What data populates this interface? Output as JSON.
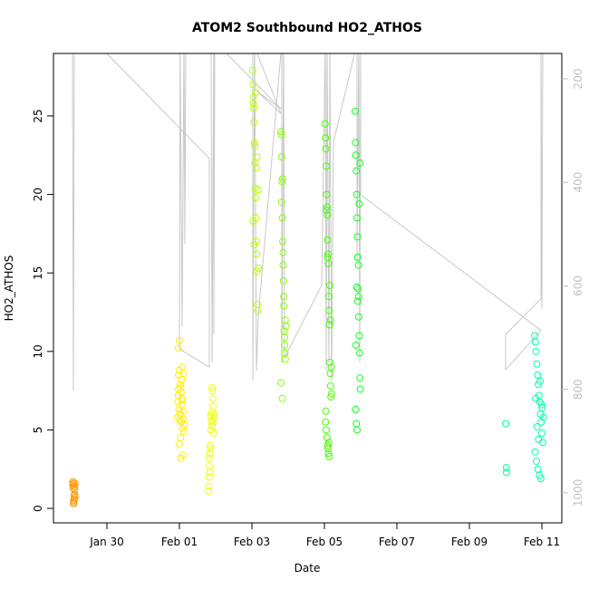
{
  "chart_data": {
    "type": "scatter",
    "title": "ATOM2 Southbound HO2_ATHOS",
    "x_label": "Date",
    "y_label": "HO2_ATHOS",
    "xlim": [
      28.525,
      42.55
    ],
    "ylim": [
      -0.92,
      28.98
    ],
    "y2lim": [
      1058,
      151
    ],
    "xticks": [
      {
        "value": 30,
        "label": "Jan 30"
      },
      {
        "value": 32,
        "label": "Feb 01"
      },
      {
        "value": 34,
        "label": "Feb 03"
      },
      {
        "value": 36,
        "label": "Feb 05"
      },
      {
        "value": 38,
        "label": "Feb 07"
      },
      {
        "value": 40,
        "label": "Feb 09"
      },
      {
        "value": 42,
        "label": "Feb 11"
      }
    ],
    "yticks": [
      0,
      5,
      10,
      15,
      20,
      25
    ],
    "y2ticks": [
      200,
      400,
      600,
      800,
      1000
    ],
    "series": [
      {
        "axis": "y2",
        "color": "#c8c8c8",
        "x": [
          29.05,
          29.075,
          29.1,
          30.0,
          32.825,
          32.825,
          32.0,
          32.02,
          32.075,
          32.125,
          32.15,
          32.175,
          32.875,
          32.9,
          32.95,
          32.95,
          32.975,
          33.3,
          34.8,
          34.125,
          34.8,
          34.025,
          34.025,
          34.075,
          34.125,
          34.175,
          34.825,
          34.825,
          34.875,
          34.9,
          35.925,
          36.025,
          36.05,
          36.075,
          36.125,
          36.15,
          36.2,
          36.25,
          36.9,
          36.9,
          36.95,
          36.975,
          37.0,
          37.0,
          41.975,
          41.0,
          41.0,
          41.975,
          41.975,
          42.0,
          42.025
        ],
        "values": [
          130,
          802,
          130,
          151,
          354,
          757,
          722,
          130,
          678,
          130,
          520,
          130,
          130,
          748,
          130,
          695,
          130,
          151,
          258,
          223,
          267,
          130,
          783,
          130,
          765,
          660,
          130,
          748,
          130,
          739,
          599,
          130,
          765,
          130,
          748,
          130,
          783,
          323,
          130,
          555,
          130,
          748,
          130,
          424,
          686,
          762,
          694,
          625,
          130,
          643,
          130
        ]
      },
      {
        "color": "#ff9900",
        "x": [
          29.06,
          29.06,
          29.07,
          29.07,
          29.08,
          29.08,
          29.09,
          29.09,
          29.1,
          29.1,
          29.11,
          29.11,
          29.12,
          29.12
        ],
        "values": [
          1.7,
          1.5,
          1.6,
          1.3,
          0.3,
          0.5,
          0.8,
          0.4,
          1.4,
          0.6,
          0.9,
          1.2,
          0.7,
          1.6
        ]
      },
      {
        "color": "#ffee00",
        "x": [
          31.95,
          31.96,
          31.97,
          31.98,
          31.98,
          31.99,
          32.0,
          32.0,
          32.01,
          32.02,
          32.02,
          32.03,
          32.04,
          32.05,
          32.05,
          32.06,
          32.07,
          32.08,
          32.08,
          32.09,
          32.1,
          32.1,
          32.11,
          32.12,
          32.13,
          32.14,
          31.97,
          32.0,
          32.03,
          32.06
        ],
        "values": [
          5.8,
          6.8,
          7.2,
          8.5,
          7.6,
          6.3,
          8.8,
          10.7,
          5.6,
          7.9,
          6.0,
          4.5,
          3.2,
          5.5,
          7.4,
          8.2,
          6.6,
          5.1,
          9.0,
          7.0,
          5.7,
          3.4,
          6.2,
          8.6,
          4.9,
          5.3,
          10.2,
          4.1,
          7.7,
          6.9
        ]
      },
      {
        "color": "#eeff00",
        "x": [
          32.8,
          32.81,
          32.82,
          32.83,
          32.84,
          32.85,
          32.86,
          32.87,
          32.88,
          32.89,
          32.9,
          32.91,
          32.92,
          32.93,
          32.94,
          32.95,
          32.96,
          32.82,
          32.86,
          32.9,
          32.84,
          32.92
        ],
        "values": [
          1.1,
          1.4,
          2.0,
          2.7,
          3.5,
          4.0,
          3.8,
          5.0,
          5.6,
          6.1,
          5.3,
          7.5,
          7.0,
          6.5,
          5.8,
          4.8,
          6.0,
          3.2,
          5.9,
          7.7,
          2.3,
          5.5
        ]
      },
      {
        "color": "#bbff00",
        "x": [
          34.02,
          34.03,
          34.04,
          34.05,
          34.06,
          34.07,
          34.08,
          34.09,
          34.1,
          34.11,
          34.12,
          34.13,
          34.14,
          34.15,
          34.16,
          34.17,
          34.04,
          34.08,
          34.12,
          34.03,
          34.06,
          34.1,
          34.14,
          34.18
        ],
        "values": [
          27.9,
          27.0,
          26.2,
          25.5,
          24.6,
          23.3,
          22.0,
          20.4,
          19.8,
          18.5,
          17.0,
          16.2,
          15.1,
          13.0,
          12.6,
          20.3,
          25.8,
          23.1,
          21.7,
          18.3,
          16.8,
          26.5,
          22.4,
          15.3
        ]
      },
      {
        "color": "#88ff00",
        "x": [
          34.8,
          34.81,
          34.82,
          34.83,
          34.84,
          34.85,
          34.86,
          34.87,
          34.88,
          34.89,
          34.9,
          34.91,
          34.92,
          34.8,
          34.84,
          34.88,
          34.92,
          34.82,
          34.86,
          34.9,
          34.94,
          34.85
        ],
        "values": [
          24.0,
          23.8,
          22.4,
          20.8,
          18.5,
          17.0,
          16.3,
          14.5,
          12.9,
          11.3,
          10.9,
          9.9,
          9.5,
          8.0,
          7.0,
          13.5,
          12.0,
          19.5,
          15.5,
          10.4,
          11.6,
          21.0
        ]
      },
      {
        "color": "#44ff00",
        "x": [
          36.02,
          36.03,
          36.04,
          36.05,
          36.06,
          36.07,
          36.08,
          36.09,
          36.1,
          36.11,
          36.12,
          36.13,
          36.14,
          36.15,
          36.16,
          36.17,
          36.18,
          36.03,
          36.05,
          36.07,
          36.09,
          36.11,
          36.13,
          36.15,
          36.17,
          36.19,
          36.2,
          36.04,
          36.06,
          36.08,
          36.1,
          36.12
        ],
        "values": [
          24.5,
          23.6,
          22.9,
          21.8,
          20.0,
          19.2,
          18.7,
          17.1,
          16.2,
          15.6,
          13.5,
          12.6,
          11.7,
          9.3,
          8.6,
          7.8,
          7.1,
          5.5,
          5.0,
          4.5,
          4.0,
          3.5,
          3.3,
          14.2,
          12.0,
          9.0,
          7.3,
          6.2,
          19.0,
          16.0,
          3.8,
          4.2
        ]
      },
      {
        "color": "#11ff22",
        "x": [
          36.85,
          36.86,
          36.87,
          36.88,
          36.89,
          36.9,
          36.91,
          36.92,
          36.93,
          36.94,
          36.95,
          36.96,
          36.97,
          36.98,
          36.99,
          36.86,
          36.88,
          36.9,
          36.92,
          36.94,
          36.96,
          36.98,
          36.87,
          36.89
        ],
        "values": [
          25.3,
          23.3,
          22.5,
          21.5,
          20.0,
          18.5,
          17.3,
          16.0,
          14.0,
          13.5,
          12.2,
          11.0,
          9.9,
          8.3,
          7.6,
          6.3,
          5.4,
          5.0,
          13.2,
          15.5,
          19.4,
          22.0,
          10.4,
          14.1
        ]
      },
      {
        "color": "#00ff99",
        "x": [
          41.0,
          41.02,
          41.02
        ],
        "values": [
          5.4,
          2.6,
          2.3
        ]
      },
      {
        "color": "#00ffaa",
        "x": [
          41.8,
          41.82,
          41.84,
          41.86,
          41.88,
          41.9,
          41.92,
          41.94,
          41.96,
          41.98,
          42.0,
          42.02,
          41.81,
          41.85,
          41.89,
          41.93,
          41.97,
          42.01,
          42.04,
          41.83,
          41.87,
          41.91,
          41.95,
          41.99
        ],
        "values": [
          11.0,
          10.6,
          10.0,
          9.2,
          8.5,
          7.9,
          7.2,
          6.8,
          6.0,
          5.5,
          4.8,
          4.2,
          3.6,
          3.0,
          2.5,
          2.1,
          1.9,
          6.4,
          5.8,
          7.0,
          5.2,
          4.4,
          8.1,
          6.6
        ]
      }
    ]
  }
}
